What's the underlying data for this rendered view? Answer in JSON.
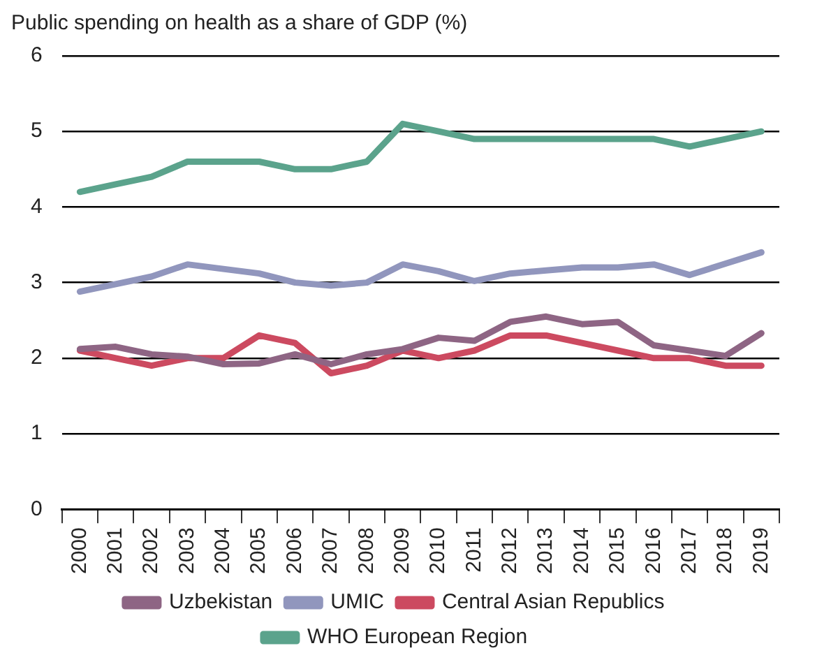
{
  "chart_data": {
    "type": "line",
    "title": "Public spending on health as a share of GDP (%)",
    "categories": [
      "2000",
      "2001",
      "2002",
      "2003",
      "2004",
      "2005",
      "2006",
      "2007",
      "2008",
      "2009",
      "2010",
      "2011",
      "2012",
      "2013",
      "2014",
      "2015",
      "2016",
      "2017",
      "2018",
      "2019"
    ],
    "series": [
      {
        "name": "Uzbekistan",
        "color": "#8e6584",
        "values": [
          2.12,
          2.15,
          2.05,
          2.02,
          1.92,
          1.93,
          2.05,
          1.92,
          2.05,
          2.12,
          2.27,
          2.23,
          2.48,
          2.55,
          2.45,
          2.48,
          2.17,
          2.1,
          2.03,
          2.33
        ]
      },
      {
        "name": "UMIC",
        "color": "#9196bd",
        "values": [
          2.88,
          2.98,
          3.08,
          3.24,
          3.18,
          3.12,
          3.0,
          2.96,
          3.0,
          3.24,
          3.15,
          3.02,
          3.12,
          3.16,
          3.2,
          3.2,
          3.24,
          3.1,
          3.25,
          3.4
        ]
      },
      {
        "name": "Central Asian Republics",
        "color": "#cc4a60",
        "values": [
          2.1,
          2.0,
          1.9,
          2.0,
          2.0,
          2.3,
          2.2,
          1.8,
          1.9,
          2.1,
          2.0,
          2.1,
          2.3,
          2.3,
          2.2,
          2.1,
          2.0,
          2.0,
          1.9,
          1.9
        ]
      },
      {
        "name": "WHO European Region",
        "color": "#5ba38c",
        "values": [
          4.2,
          4.3,
          4.4,
          4.6,
          4.6,
          4.6,
          4.5,
          4.5,
          4.6,
          5.1,
          5.0,
          4.9,
          4.9,
          4.9,
          4.9,
          4.9,
          4.9,
          4.8,
          4.9,
          5.0
        ]
      }
    ],
    "ylim": [
      0,
      6
    ],
    "yticks": [
      0,
      1,
      2,
      3,
      4,
      5,
      6
    ],
    "grid": "y",
    "legend": "bottom",
    "marker": "none",
    "line_style": "solid"
  }
}
